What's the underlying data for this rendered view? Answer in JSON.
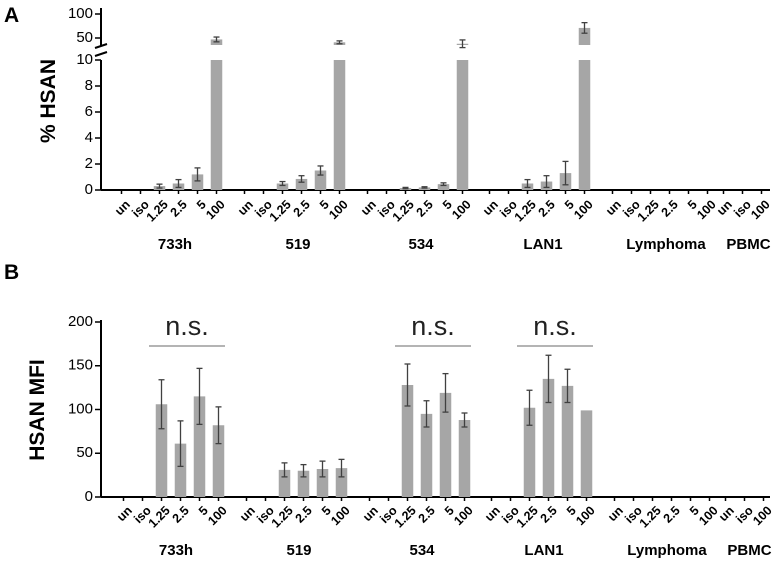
{
  "chart_data": [
    {
      "panel_label": "A",
      "type": "bar",
      "ylabel": "% HSAN",
      "y_axis_break": true,
      "ylim_lower": [
        0,
        10
      ],
      "ylim_upper": [
        50,
        100
      ],
      "yticks_lower": [
        "0",
        "2",
        "4",
        "6",
        "8",
        "10"
      ],
      "yticks_upper": [
        "50",
        "100"
      ],
      "groups": [
        {
          "name": "733h",
          "categories": [
            "un",
            "iso",
            "1.25",
            "2.5",
            "5",
            "100"
          ],
          "values": [
            0,
            0,
            0.3,
            0.5,
            1.2,
            47
          ],
          "errors": [
            0,
            0,
            0.15,
            0.3,
            0.5,
            5
          ]
        },
        {
          "name": "519",
          "categories": [
            "un",
            "iso",
            "1.25",
            "2.5",
            "5",
            "100"
          ],
          "values": [
            0,
            0,
            0.5,
            0.85,
            1.5,
            41
          ],
          "errors": [
            0,
            0,
            0.15,
            0.25,
            0.35,
            3
          ]
        },
        {
          "name": "534",
          "categories": [
            "un",
            "iso",
            "1.25",
            "2.5",
            "5",
            "100"
          ],
          "values": [
            0,
            0,
            0.15,
            0.2,
            0.45,
            38
          ],
          "errors": [
            0,
            0,
            0.05,
            0.05,
            0.1,
            8
          ]
        },
        {
          "name": "LAN1",
          "categories": [
            "un",
            "iso",
            "1.25",
            "2.5",
            "5",
            "100"
          ],
          "values": [
            0,
            0,
            0.5,
            0.65,
            1.3,
            71
          ],
          "errors": [
            0,
            0,
            0.3,
            0.45,
            0.9,
            11
          ]
        },
        {
          "name": "Lymphoma",
          "categories": [
            "un",
            "iso",
            "1.25",
            "2.5",
            "5",
            "100"
          ],
          "values": [
            0,
            0,
            0,
            0,
            0,
            0
          ],
          "errors": [
            0,
            0,
            0,
            0,
            0,
            0
          ]
        },
        {
          "name": "PBMC",
          "categories": [
            "un",
            "iso",
            "100"
          ],
          "values": [
            0,
            0,
            0
          ],
          "errors": [
            0,
            0,
            0
          ]
        }
      ]
    },
    {
      "panel_label": "B",
      "type": "bar",
      "ylabel": "HSAN MFI",
      "ylim": [
        0,
        200
      ],
      "yticks": [
        "0",
        "50",
        "100",
        "150",
        "200"
      ],
      "significance": [
        "n.s.",
        "n.s.",
        "n.s."
      ],
      "groups": [
        {
          "name": "733h",
          "categories": [
            "un",
            "iso",
            "1.25",
            "2.5",
            "5",
            "100"
          ],
          "values": [
            0,
            0,
            106,
            61,
            115,
            82
          ],
          "errors": [
            0,
            0,
            28,
            26,
            32,
            21
          ]
        },
        {
          "name": "519",
          "categories": [
            "un",
            "iso",
            "1.25",
            "2.5",
            "5",
            "100"
          ],
          "values": [
            0,
            0,
            31,
            30,
            32,
            33
          ],
          "errors": [
            0,
            0,
            8,
            7,
            9,
            10
          ]
        },
        {
          "name": "534",
          "categories": [
            "un",
            "iso",
            "1.25",
            "2.5",
            "5",
            "100"
          ],
          "values": [
            0,
            0,
            128,
            95,
            119,
            88
          ],
          "errors": [
            0,
            0,
            24,
            15,
            22,
            8
          ]
        },
        {
          "name": "LAN1",
          "categories": [
            "un",
            "iso",
            "1.25",
            "2.5",
            "5",
            "100"
          ],
          "values": [
            0,
            0,
            102,
            135,
            127,
            99
          ],
          "errors": [
            0,
            0,
            20,
            27,
            19,
            0
          ]
        },
        {
          "name": "Lymphoma",
          "categories": [
            "un",
            "iso",
            "1.25",
            "2.5",
            "5",
            "100"
          ],
          "values": [
            0,
            0,
            0,
            0,
            0,
            0
          ],
          "errors": [
            0,
            0,
            0,
            0,
            0,
            0
          ]
        },
        {
          "name": "PBMC",
          "categories": [
            "un",
            "iso",
            "100"
          ],
          "values": [
            0,
            0,
            0
          ],
          "errors": [
            0,
            0,
            0
          ]
        }
      ]
    }
  ]
}
